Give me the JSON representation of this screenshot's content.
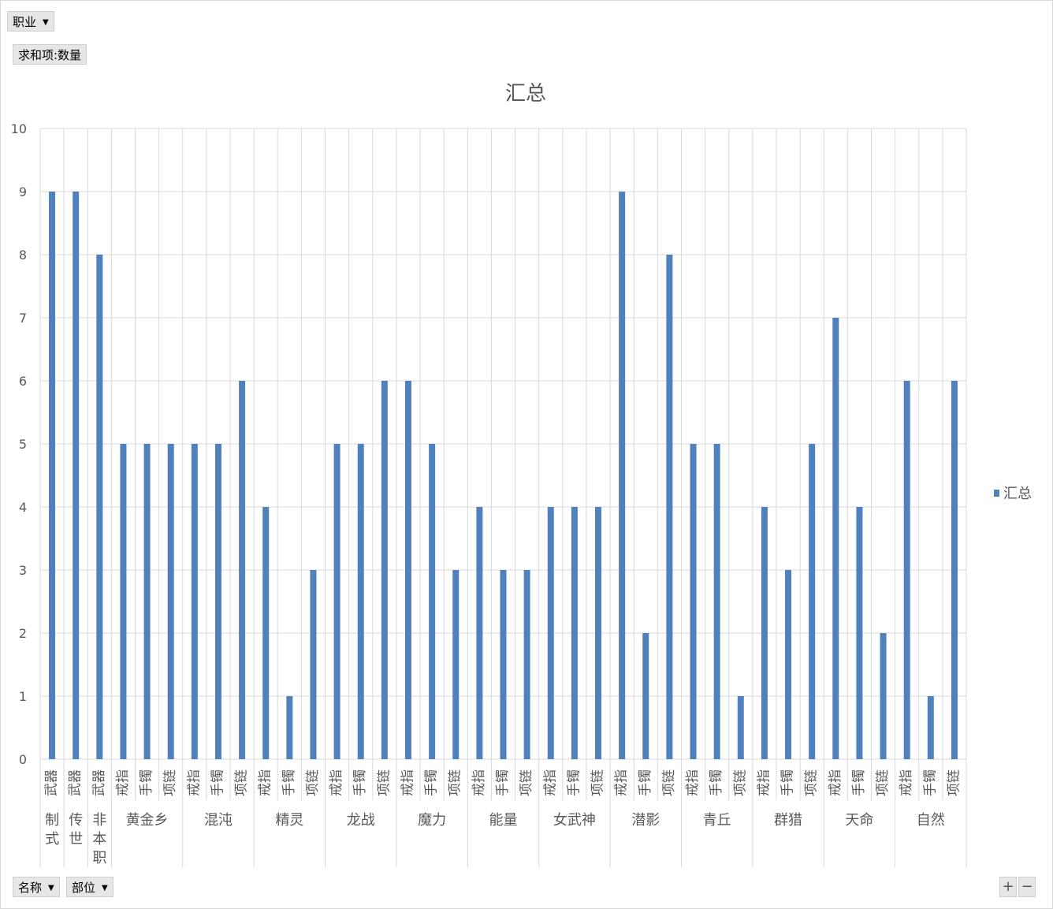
{
  "filters": {
    "report_filter": "职业",
    "value_field": "求和项:数量",
    "axis_fields": [
      "名称",
      "部位"
    ]
  },
  "zoom": {
    "plus": "+",
    "minus": "−"
  },
  "chart_data": {
    "type": "bar",
    "title": "汇总",
    "ylim": [
      0,
      10
    ],
    "y_ticks": [
      0,
      1,
      2,
      3,
      4,
      5,
      6,
      7,
      8,
      9,
      10
    ],
    "legend": {
      "position": "right",
      "label": "汇总"
    },
    "grid": true,
    "series_color": "#4f81bd",
    "groups": [
      {
        "name": "制式",
        "items": [
          {
            "label": "武器",
            "value": 9
          }
        ]
      },
      {
        "name": "传世",
        "items": [
          {
            "label": "武器",
            "value": 9
          }
        ]
      },
      {
        "name": "非本职",
        "items": [
          {
            "label": "武器",
            "value": 8
          }
        ]
      },
      {
        "name": "黄金乡",
        "items": [
          {
            "label": "戒指",
            "value": 5
          },
          {
            "label": "手镯",
            "value": 5
          },
          {
            "label": "项链",
            "value": 5
          }
        ]
      },
      {
        "name": "混沌",
        "items": [
          {
            "label": "戒指",
            "value": 5
          },
          {
            "label": "手镯",
            "value": 5
          },
          {
            "label": "项链",
            "value": 6
          }
        ]
      },
      {
        "name": "精灵",
        "items": [
          {
            "label": "戒指",
            "value": 4
          },
          {
            "label": "手镯",
            "value": 1
          },
          {
            "label": "项链",
            "value": 3
          }
        ]
      },
      {
        "name": "龙战",
        "items": [
          {
            "label": "戒指",
            "value": 5
          },
          {
            "label": "手镯",
            "value": 5
          },
          {
            "label": "项链",
            "value": 6
          }
        ]
      },
      {
        "name": "魔力",
        "items": [
          {
            "label": "戒指",
            "value": 6
          },
          {
            "label": "手镯",
            "value": 5
          },
          {
            "label": "项链",
            "value": 3
          }
        ]
      },
      {
        "name": "能量",
        "items": [
          {
            "label": "戒指",
            "value": 4
          },
          {
            "label": "手镯",
            "value": 3
          },
          {
            "label": "项链",
            "value": 3
          }
        ]
      },
      {
        "name": "女武神",
        "items": [
          {
            "label": "戒指",
            "value": 4
          },
          {
            "label": "手镯",
            "value": 4
          },
          {
            "label": "项链",
            "value": 4
          }
        ]
      },
      {
        "name": "潜影",
        "items": [
          {
            "label": "戒指",
            "value": 9
          },
          {
            "label": "手镯",
            "value": 2
          },
          {
            "label": "项链",
            "value": 8
          }
        ]
      },
      {
        "name": "青丘",
        "items": [
          {
            "label": "戒指",
            "value": 5
          },
          {
            "label": "手镯",
            "value": 5
          },
          {
            "label": "项链",
            "value": 1
          }
        ]
      },
      {
        "name": "群猎",
        "items": [
          {
            "label": "戒指",
            "value": 4
          },
          {
            "label": "手镯",
            "value": 3
          },
          {
            "label": "项链",
            "value": 5
          }
        ]
      },
      {
        "name": "天命",
        "items": [
          {
            "label": "戒指",
            "value": 7
          },
          {
            "label": "手镯",
            "value": 4
          },
          {
            "label": "项链",
            "value": 2
          }
        ]
      },
      {
        "name": "自然",
        "items": [
          {
            "label": "戒指",
            "value": 6
          },
          {
            "label": "手镯",
            "value": 1
          },
          {
            "label": "项链",
            "value": 6
          }
        ]
      }
    ]
  }
}
